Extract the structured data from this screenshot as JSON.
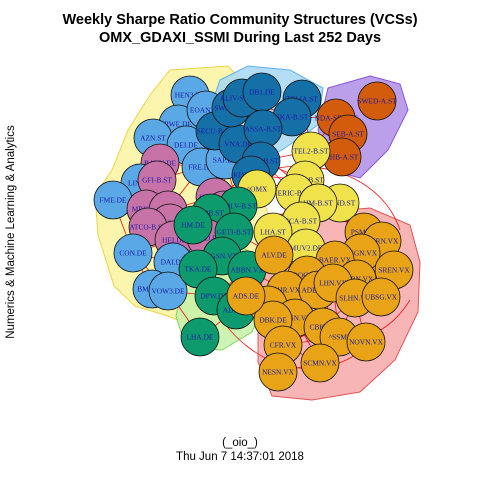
{
  "title": "Weekly Sharpe Ratio Community Structures (VCSs)\nOMX_GDAXI_SSMI During Last 252 Days",
  "side_label": "Numerics & Machine Learning & Analytics",
  "footer_line1": "(_oio_)",
  "footer_line2": "Thu Jun  7 14:37:01 2018",
  "communities": [
    {
      "name": "yellow",
      "fill": "#fbf3a0",
      "stroke": "#e6d64a"
    },
    {
      "name": "lightblue",
      "fill": "#a7d8f5",
      "stroke": "#5fb2e8"
    },
    {
      "name": "purple",
      "fill": "#b08ee8",
      "stroke": "#8a55d8"
    },
    {
      "name": "lightgreen",
      "fill": "#c4f2a8",
      "stroke": "#7fd85e"
    },
    {
      "name": "pink",
      "fill": "#f7a8a8",
      "stroke": "#e05555"
    }
  ],
  "node_colors": {
    "blue": "#5aa9e6",
    "darkblue": "#1670a8",
    "pink": "#c873a8",
    "green": "#0d9b6e",
    "yellow": "#f0e24a",
    "orange": "#e8a317",
    "darkorange": "#d35b0c"
  },
  "edge_color": "#ee1111",
  "nodes": [
    {
      "label": "HEN3.DE",
      "color": "blue"
    },
    {
      "label": "RWE.DE",
      "color": "blue"
    },
    {
      "label": "EOAN.DE",
      "color": "blue"
    },
    {
      "label": "AZN.ST",
      "color": "blue"
    },
    {
      "label": "DEI.DE",
      "color": "blue"
    },
    {
      "label": "BAYN.DE",
      "color": "pink"
    },
    {
      "label": "LIN.DE",
      "color": "blue"
    },
    {
      "label": "GFI-B.ST",
      "color": "pink"
    },
    {
      "label": "FME.DE",
      "color": "blue"
    },
    {
      "label": "MRK.DE",
      "color": "pink"
    },
    {
      "label": "SIE.DE",
      "color": "pink"
    },
    {
      "label": "BAS.DE",
      "color": "pink"
    },
    {
      "label": "ATCO-B.ST",
      "color": "pink"
    },
    {
      "label": "HEI.DE",
      "color": "pink"
    },
    {
      "label": "CON.DE",
      "color": "blue"
    },
    {
      "label": "DAI.DE",
      "color": "blue"
    },
    {
      "label": "BMW.DE",
      "color": "blue"
    },
    {
      "label": "VOW3.DE",
      "color": "blue"
    },
    {
      "label": "FRE.DE",
      "color": "blue"
    },
    {
      "label": "SAP.DE",
      "color": "blue"
    },
    {
      "label": "SECU-B.ST",
      "color": "darkblue"
    },
    {
      "label": "VNA.DE",
      "color": "darkblue"
    },
    {
      "label": "SWMA.ST",
      "color": "darkblue"
    },
    {
      "label": "ALIV-SDB.ST",
      "color": "darkblue"
    },
    {
      "label": "DB1.DE",
      "color": "darkblue"
    },
    {
      "label": "TELIA.ST",
      "color": "darkblue"
    },
    {
      "label": "SKA-B.ST",
      "color": "darkblue"
    },
    {
      "label": "ASSA-B.ST",
      "color": "darkblue"
    },
    {
      "label": "INVE-B.ST",
      "color": "darkblue"
    },
    {
      "label": "KINV-B.ST",
      "color": "darkblue"
    },
    {
      "label": "SWED-A.ST",
      "color": "darkorange"
    },
    {
      "label": "NDA-SEK.ST",
      "color": "darkorange"
    },
    {
      "label": "SEB-A.ST",
      "color": "darkorange"
    },
    {
      "label": "SHB-A.ST",
      "color": "darkorange"
    },
    {
      "label": "TEL2-B.ST",
      "color": "yellow"
    },
    {
      "label": "ELUX-B.ST",
      "color": "yellow"
    },
    {
      "label": "^OMX",
      "color": "yellow"
    },
    {
      "label": "ERIC-B.ST",
      "color": "yellow"
    },
    {
      "label": "SSAB-A.ST",
      "color": "yellow"
    },
    {
      "label": "SAND.ST",
      "color": "yellow"
    },
    {
      "label": "HM-B.ST",
      "color": "yellow"
    },
    {
      "label": "SCA-B.ST",
      "color": "yellow"
    },
    {
      "label": "LHA.ST",
      "color": "yellow"
    },
    {
      "label": "MUV2.DE",
      "color": "yellow"
    },
    {
      "label": "SKF-B.ST",
      "color": "pink"
    },
    {
      "label": "GDAXI",
      "color": "pink"
    },
    {
      "label": "VOLV-B.ST",
      "color": "green"
    },
    {
      "label": "ABB.ST",
      "color": "green"
    },
    {
      "label": "SAND.DE",
      "color": "pink"
    },
    {
      "label": "HM.DE",
      "color": "green"
    },
    {
      "label": "GETI-B.ST",
      "color": "green"
    },
    {
      "label": "SGSN.VX",
      "color": "green"
    },
    {
      "label": "TKA.DE",
      "color": "green"
    },
    {
      "label": "ABBN.VX",
      "color": "green"
    },
    {
      "label": "DPW.DE",
      "color": "green"
    },
    {
      "label": "ADS.DE",
      "color": "green"
    },
    {
      "label": "LHA.DE",
      "color": "green"
    },
    {
      "label": "ALV.DE",
      "color": "orange"
    },
    {
      "label": "PSM.DE",
      "color": "orange"
    },
    {
      "label": "ZURN.VX",
      "color": "orange"
    },
    {
      "label": "CSGN.VX",
      "color": "orange"
    },
    {
      "label": "BAER.VX",
      "color": "orange"
    },
    {
      "label": "GEBN.VX",
      "color": "orange"
    },
    {
      "label": "SREN.VX",
      "color": "orange"
    },
    {
      "label": "ROG.VX",
      "color": "orange"
    },
    {
      "label": "UHR.VX",
      "color": "orange"
    },
    {
      "label": "ADEN.VX",
      "color": "orange"
    },
    {
      "label": "LHN.VX",
      "color": "orange"
    },
    {
      "label": "SLHN.VX",
      "color": "orange"
    },
    {
      "label": "UBSG.VX",
      "color": "orange"
    },
    {
      "label": "SIK.VX",
      "color": "orange"
    },
    {
      "label": "LONN.VX",
      "color": "orange"
    },
    {
      "label": "DBK.DE",
      "color": "orange"
    },
    {
      "label": "CFR.VX",
      "color": "orange"
    },
    {
      "label": "CBK.DE",
      "color": "orange"
    },
    {
      "label": "^SSMI",
      "color": "orange"
    },
    {
      "label": "NOVN.VX",
      "color": "orange"
    },
    {
      "label": "SCMN.VX",
      "color": "orange"
    },
    {
      "label": "NESN.VX",
      "color": "orange"
    },
    {
      "label": "ADS.DE2",
      "color": "orange"
    }
  ]
}
